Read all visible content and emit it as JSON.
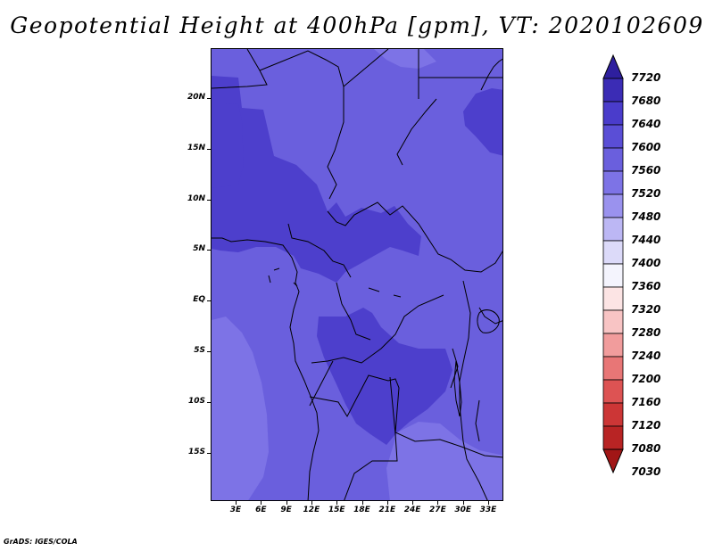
{
  "title": "Geopotential Height at 400hPa [gpm], VT: 2020102609",
  "footer": "GrADS: IGES/COLA",
  "map": {
    "lon_ticks": [
      "3E",
      "6E",
      "9E",
      "12E",
      "15E",
      "18E",
      "21E",
      "24E",
      "27E",
      "30E",
      "33E"
    ],
    "lat_ticks": [
      "20N",
      "15N",
      "10N",
      "5N",
      "EQ",
      "5S",
      "10S",
      "15S"
    ],
    "colors": {
      "base_7560": "#6a5fdd",
      "band_7600": "#4d3fcc",
      "band_7520": "#7d73e6",
      "boundary": "#000000"
    }
  },
  "colorbar": {
    "labels": [
      "7720",
      "7680",
      "7640",
      "7600",
      "7560",
      "7520",
      "7480",
      "7440",
      "7400",
      "7360",
      "7320",
      "7280",
      "7240",
      "7200",
      "7160",
      "7120",
      "7080",
      "7030"
    ],
    "colors": [
      "#2e1f9e",
      "#3b2cb5",
      "#4a3ccb",
      "#5a4ed6",
      "#6a5fdd",
      "#7d73e6",
      "#9a92ee",
      "#bcb7f4",
      "#dcdaf9",
      "#f4f4fd",
      "#fce4e4",
      "#f8c4c4",
      "#f19c9c",
      "#e87676",
      "#dd5353",
      "#cc3636",
      "#b82424",
      "#a11616"
    ]
  }
}
